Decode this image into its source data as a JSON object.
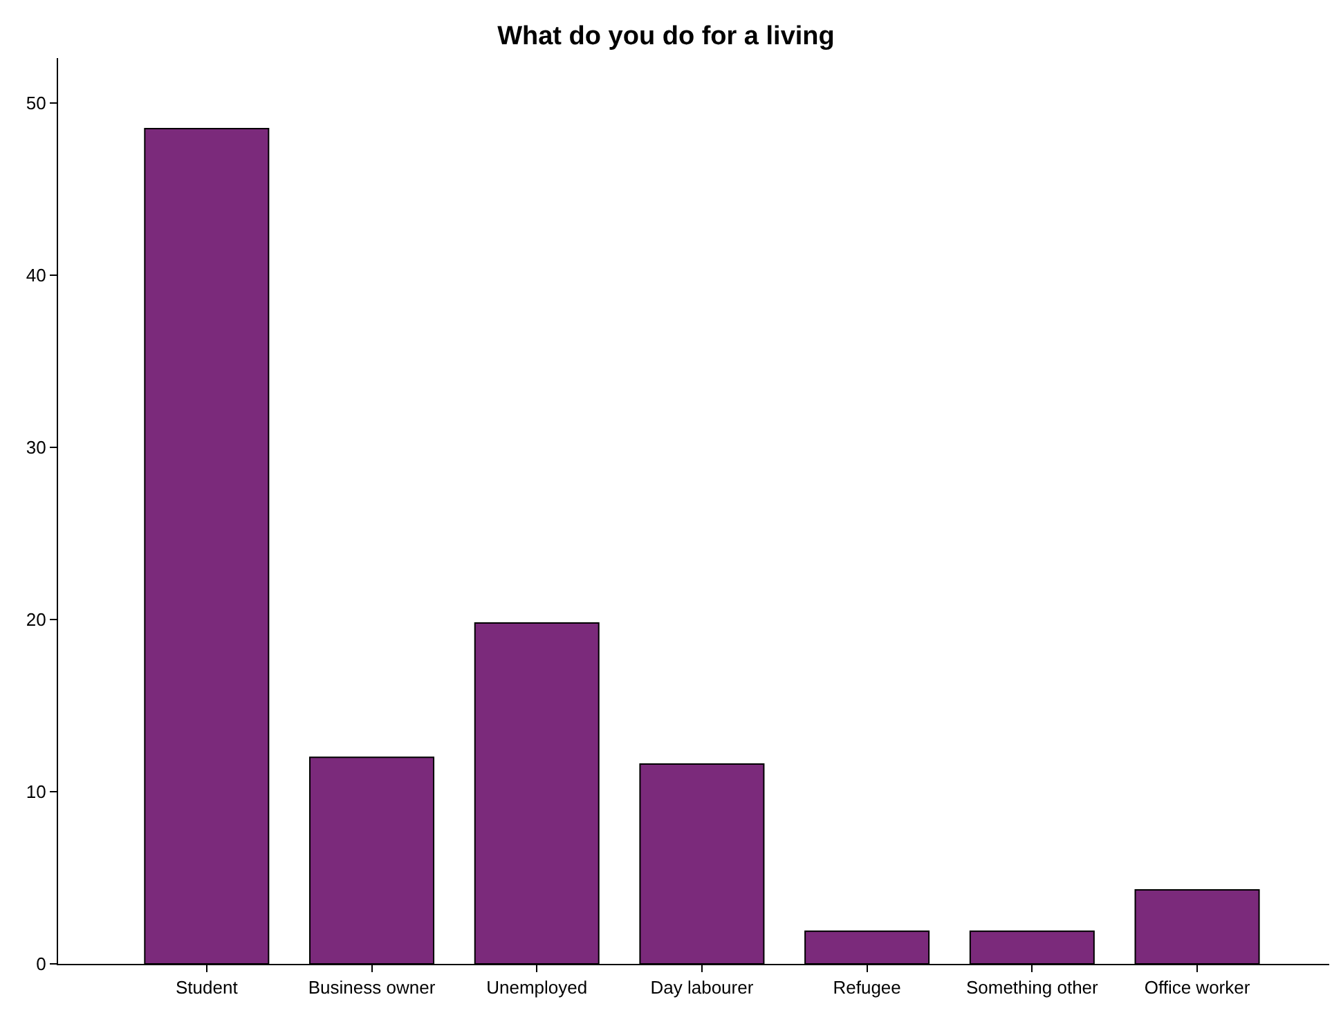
{
  "chart_data": {
    "type": "bar",
    "title": "What do you do for a living",
    "categories": [
      "Student",
      "Business owner",
      "Unemployed",
      "Day labourer",
      "Refugee",
      "Something other",
      "Office worker"
    ],
    "values": [
      48.5,
      12.0,
      19.8,
      11.6,
      1.9,
      1.9,
      4.3
    ],
    "color": "#7b2a7b",
    "ylim": [
      0,
      52.6
    ],
    "yticks": [
      0,
      10,
      20,
      30,
      40,
      50
    ],
    "grid": false
  }
}
